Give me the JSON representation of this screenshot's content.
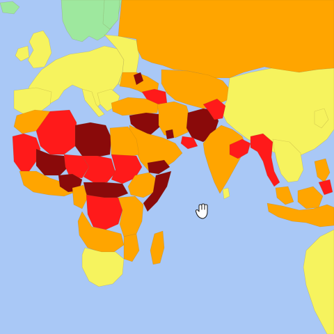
{
  "map": {
    "ocean_color": "#a9c8f6",
    "risk_colors": {
      "very_low": "#9ee89e",
      "low": "#f6f35e",
      "medium": "#ffa500",
      "high": "#ff1a1a",
      "very_high": "#8a0a0a"
    }
  },
  "cursor": {
    "icon": "hand-grab-icon"
  }
}
